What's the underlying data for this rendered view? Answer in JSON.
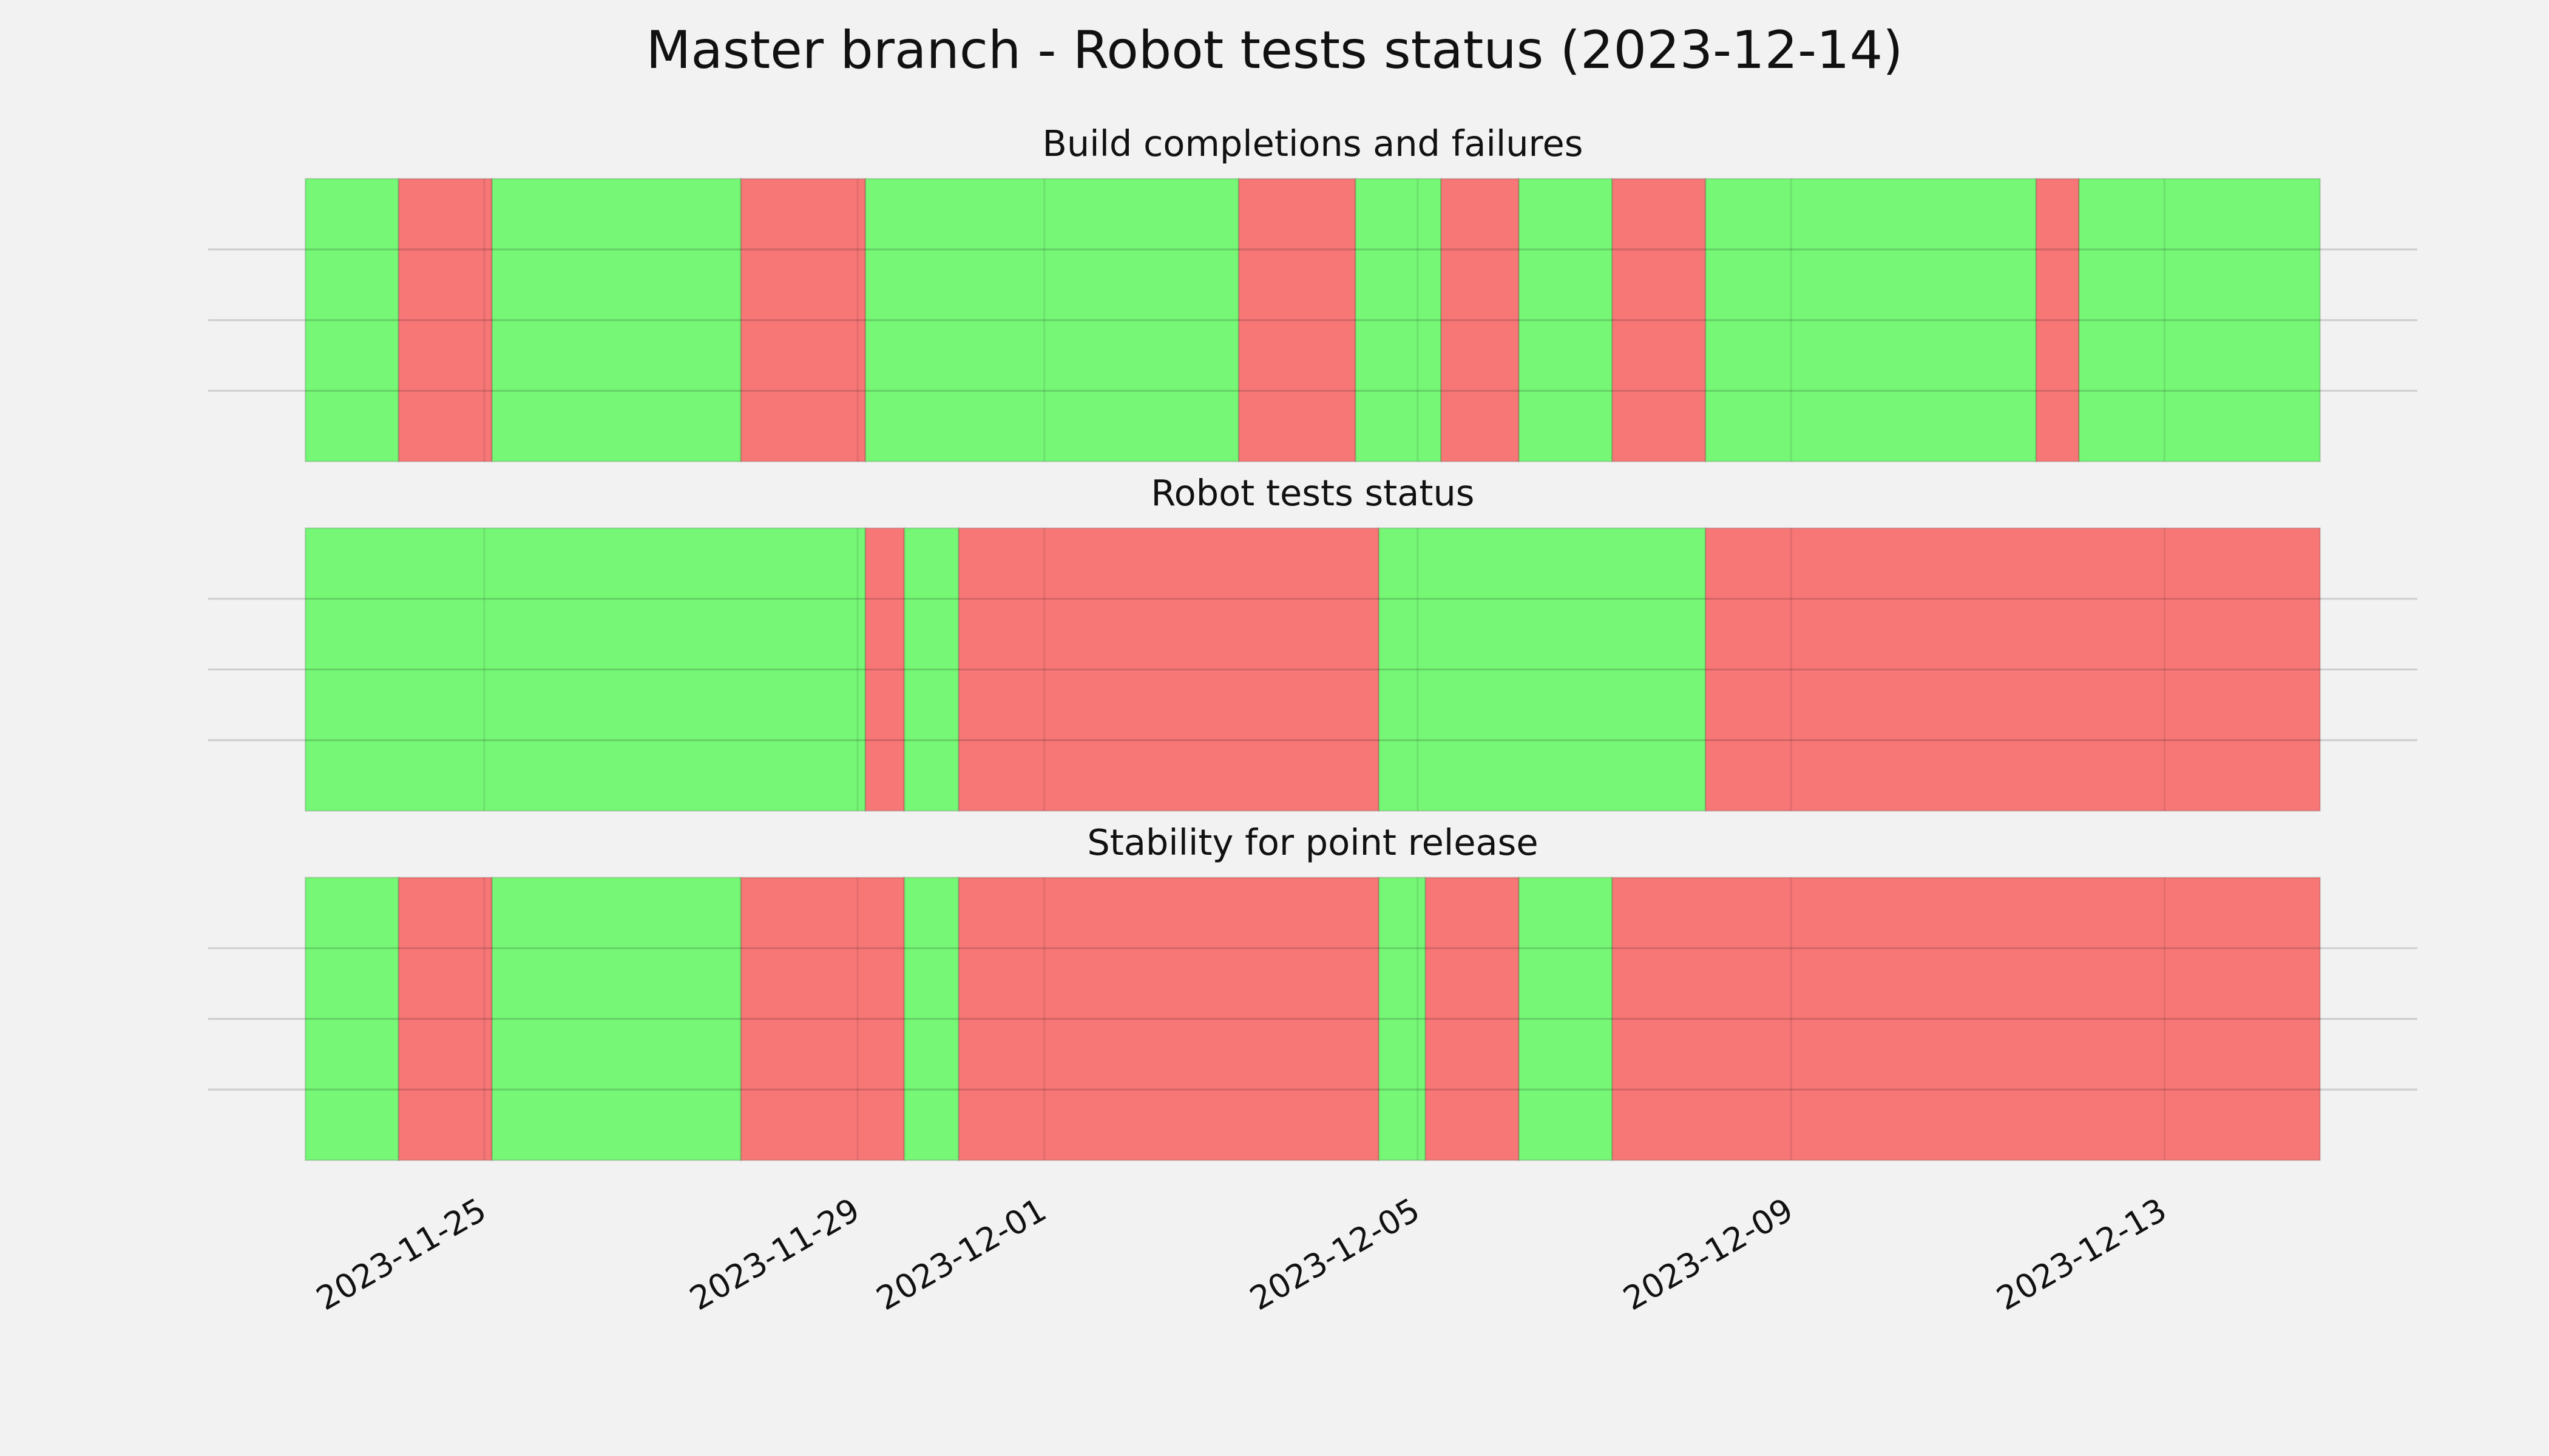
{
  "title": "Master branch - Robot tests status (2023-12-14)",
  "chart_data": [
    {
      "type": "timeline",
      "title": "Build completions and failures",
      "bins": [
        "2023-11-23T02:00",
        "2023-11-24T02:00",
        "2023-11-25T02:00",
        "2023-11-27T18:00",
        "2023-11-29T02:00",
        "2023-12-03T02:00",
        "2023-12-04T08:00",
        "2023-12-05T06:00",
        "2023-12-06T02:00",
        "2023-12-07T02:00",
        "2023-12-08T02:00",
        "2023-12-11T15:00",
        "2023-12-12T02:00",
        "2023-12-14T16:00"
      ],
      "colors": [
        "#76f776",
        "#f77777",
        "#76f776",
        "#f77777",
        "#76f776",
        "#f77777",
        "#76f776",
        "#f77777",
        "#76f776",
        "#f77777",
        "#76f776",
        "#f77777",
        "#76f776"
      ],
      "xlim": [
        "2023-11-22T01:00",
        "2023-12-15T17:00"
      ],
      "xticks": [
        "2023-11-25",
        "2023-11-29",
        "2023-12-01",
        "2023-12-05",
        "2023-12-09",
        "2023-12-13"
      ],
      "ylim": [
        0,
        1
      ],
      "yticks": [
        0.25,
        0.5,
        0.75
      ],
      "grid": true
    },
    {
      "type": "timeline",
      "title": "Robot tests status",
      "bins": [
        "2023-11-23T02:00",
        "2023-11-29T02:00",
        "2023-11-29T12:00",
        "2023-11-30T02:00",
        "2023-12-04T14:00",
        "2023-12-08T02:00",
        "2023-12-14T16:00"
      ],
      "colors": [
        "#76f776",
        "#f77777",
        "#76f776",
        "#f77777",
        "#76f776",
        "#f77777"
      ],
      "xlim": [
        "2023-11-22T01:00",
        "2023-12-15T17:00"
      ],
      "xticks": [
        "2023-11-25",
        "2023-11-29",
        "2023-12-01",
        "2023-12-05",
        "2023-12-09",
        "2023-12-13"
      ],
      "ylim": [
        0,
        1
      ],
      "yticks": [
        0.25,
        0.5,
        0.75
      ],
      "grid": true
    },
    {
      "type": "timeline",
      "title": "Stability for point release",
      "bins": [
        "2023-11-23T02:00",
        "2023-11-24T02:00",
        "2023-11-25T02:00",
        "2023-11-27T18:00",
        "2023-11-29T12:00",
        "2023-11-30T02:00",
        "2023-12-04T14:00",
        "2023-12-05T02:00",
        "2023-12-06T02:00",
        "2023-12-07T02:00",
        "2023-12-14T16:00"
      ],
      "colors": [
        "#76f776",
        "#f77777",
        "#76f776",
        "#f77777",
        "#76f776",
        "#f77777",
        "#76f776",
        "#f77777",
        "#76f776",
        "#f77777"
      ],
      "xlim": [
        "2023-11-22T01:00",
        "2023-12-15T17:00"
      ],
      "xticks": [
        "2023-11-25",
        "2023-11-29",
        "2023-12-01",
        "2023-12-05",
        "2023-12-09",
        "2023-12-13"
      ],
      "ylim": [
        0,
        1
      ],
      "yticks": [
        0.25,
        0.5,
        0.75
      ],
      "grid": true
    }
  ]
}
